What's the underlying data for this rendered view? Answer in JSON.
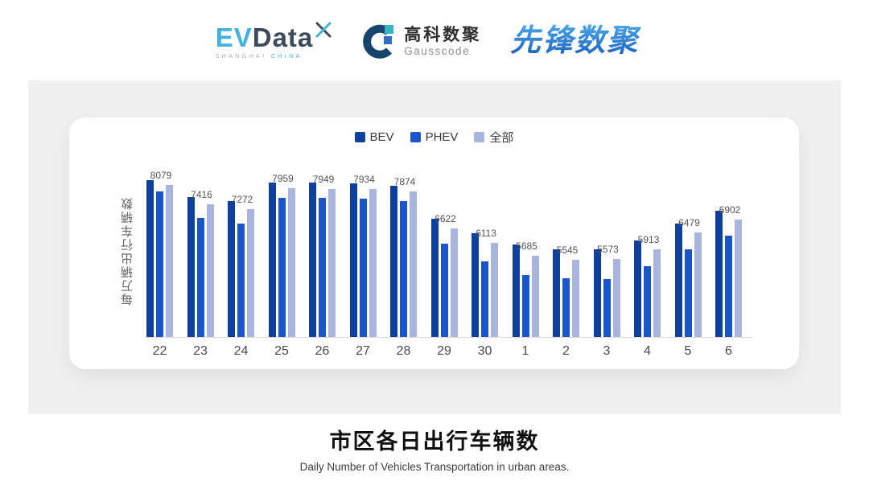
{
  "header": {
    "evdata": {
      "ev": "EV",
      "data": "Data",
      "tagline_left": "SHANGHAI",
      "tagline_right": "CHINA"
    },
    "gausscode": {
      "name_cn": "高科数聚",
      "name_en": "Gausscode"
    },
    "xianfeng": {
      "name": "先锋数聚"
    }
  },
  "chart_data": {
    "type": "bar",
    "title": "市区各日出行车辆数",
    "xlabel": "",
    "ylabel": "每万辆出行车辆数",
    "categories": [
      "22",
      "23",
      "24",
      "25",
      "26",
      "27",
      "28",
      "29",
      "30",
      "1",
      "2",
      "3",
      "4",
      "5",
      "6"
    ],
    "series": [
      {
        "name": "BEV",
        "color": "#10409E",
        "estimated": true,
        "values": [
          8240,
          7680,
          7550,
          8150,
          8150,
          8130,
          8040,
          6930,
          6440,
          6060,
          5900,
          5920,
          6220,
          6780,
          7200
        ]
      },
      {
        "name": "PHEV",
        "color": "#1A55CB",
        "estimated": true,
        "values": [
          7850,
          6970,
          6770,
          7640,
          7640,
          7610,
          7540,
          6090,
          5500,
          5030,
          4920,
          4910,
          5330,
          5920,
          6370
        ]
      },
      {
        "name": "全部",
        "color": "#A9B4DF",
        "estimated": false,
        "values": [
          8079,
          7416,
          7272,
          7959,
          7949,
          7934,
          7874,
          6622,
          6113,
          5685,
          5545,
          5573,
          5913,
          6479,
          6902
        ]
      }
    ],
    "value_labels_series": "全部",
    "ylim": [
      2950,
      8650
    ],
    "grid": false,
    "legend_position": "top",
    "y_axis_tick_labels": false
  },
  "footer": {
    "title": "市区各日出行车辆数",
    "subtitle": "Daily Number of Vehicles Transportation in urban areas."
  },
  "colors": {
    "panel_bg": "#f0f0f1",
    "card_bg": "#ffffff",
    "axis_line": "#dddddd",
    "value_label_text": "#555555",
    "tick_text": "#4a4a4a",
    "evdata_cyan": "#41b1e1",
    "evdata_dark": "#3c4a5a",
    "gausscode_dark": "#17446b",
    "gausscode_teal": "#35b4c4",
    "gausscode_blue": "#2e6fc1",
    "xianfeng_blue_light": "#4aa6e8",
    "xianfeng_blue_deep": "#1a5fc0"
  }
}
